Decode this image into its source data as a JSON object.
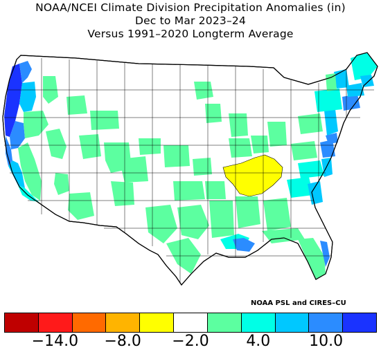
{
  "title": {
    "line1": "NOAA/NCEI Climate Division Precipitation Anomalies (in)",
    "line2": "Dec to Mar 2023–24",
    "line3": "Versus 1991–2020 Longterm Average"
  },
  "credit": "NOAA PSL and CIRES–CU",
  "legend": {
    "colors": [
      "#bf0000",
      "#ff1a1a",
      "#ff6a00",
      "#ffb400",
      "#ffff00",
      "#ffffff",
      "#5cffa0",
      "#00ffe6",
      "#00c8ff",
      "#2b8cff",
      "#1a33ff"
    ],
    "tick_labels": [
      "−14.0",
      "−8.0",
      "−2.0",
      "4.0",
      "10.0"
    ]
  },
  "map_colors": {
    "dry_moderate": "#ffff00",
    "normal": "#ffffff",
    "wet_slight": "#5cffa0",
    "wet_moderate": "#00ffe6",
    "wet_heavy": "#00c8ff",
    "wet_very_heavy": "#2b8cff",
    "wet_extreme": "#1a33ff",
    "border": "#000000"
  }
}
